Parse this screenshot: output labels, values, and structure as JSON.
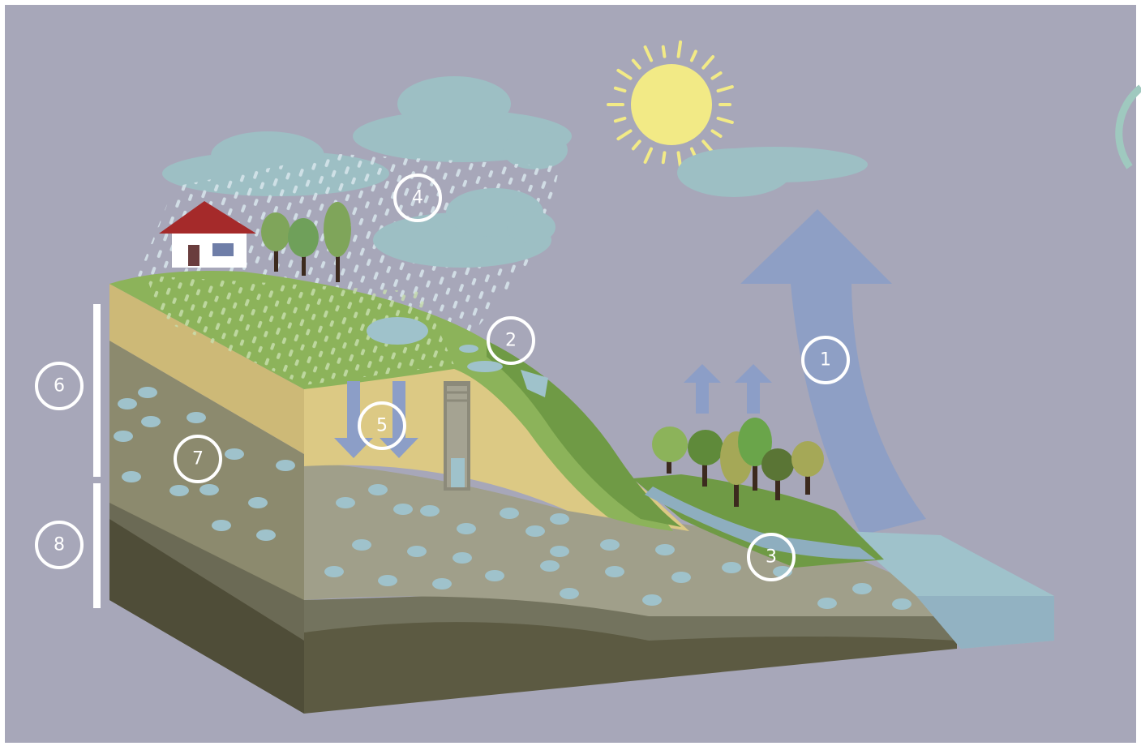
{
  "colors": {
    "sky": "#a7a7b9",
    "cloud": "#9dbfc4",
    "sun": "#f2ea86",
    "sun_rays": "#f2ea86",
    "grass_light": "#8cb35a",
    "grass_dark": "#6f9a45",
    "sand": "#dcc984",
    "gravel": "#a09f8a",
    "aquifer_layer": "#8c8a6e",
    "clay_layer": "#73735e",
    "bedrock": "#5c5a42",
    "water": "#9fc2cb",
    "arrow_blue": "#8c9ec7",
    "label_ring": "#ffffff",
    "roof": "#a52a2a",
    "house_wall": "#ffffff"
  },
  "icons": [
    "sun-icon",
    "house-icon",
    "tree-icon",
    "well-icon",
    "cloud-icon",
    "rain-icon"
  ],
  "labels": {
    "l1": "1",
    "l2": "2",
    "l3": "3",
    "l4": "4",
    "l5": "5",
    "l6": "6",
    "l7": "7",
    "l8": "8"
  }
}
